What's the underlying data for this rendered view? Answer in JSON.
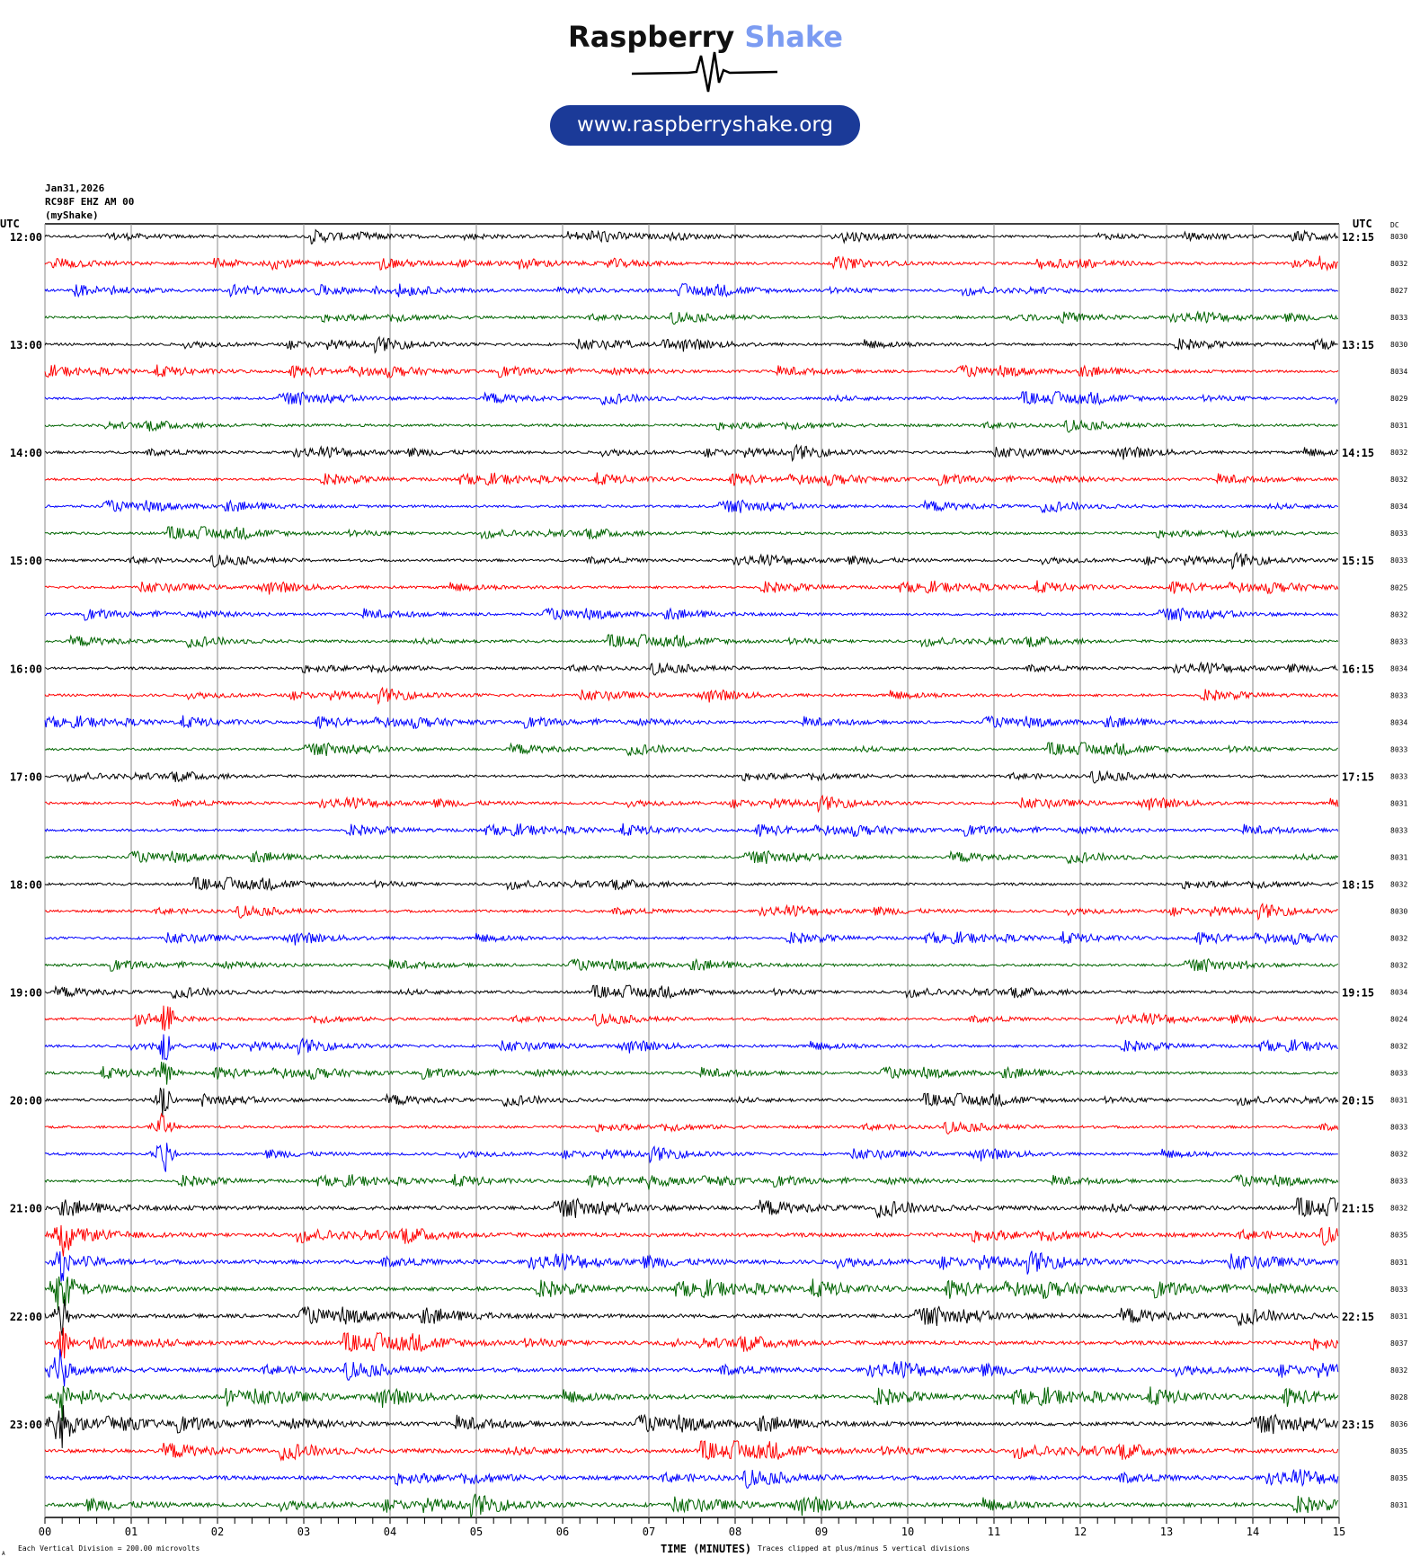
{
  "header": {
    "brand_part1": "Raspberry",
    "brand_part2": "Shake",
    "url": "www.raspberryshake.org",
    "date": "Jan31,2026",
    "station": "RC98F EHZ AM 00",
    "network": "(myShake)"
  },
  "chart_data": {
    "type": "line",
    "title": "",
    "xlabel": "TIME (MINUTES)",
    "left_axis_title": "UTC",
    "right_axis_title": "UTC",
    "dc_title": "DC",
    "xlim": [
      0,
      15
    ],
    "x_ticks": [
      "00",
      "01",
      "02",
      "03",
      "04",
      "05",
      "06",
      "07",
      "08",
      "09",
      "10",
      "11",
      "12",
      "13",
      "14",
      "15"
    ],
    "grid": true,
    "trace_colors": [
      "#000000",
      "#ff0000",
      "#0000ff",
      "#006400"
    ],
    "left_hour_labels": [
      "12:00",
      "13:00",
      "14:00",
      "15:00",
      "16:00",
      "17:00",
      "18:00",
      "19:00",
      "20:00",
      "21:00",
      "22:00",
      "23:00"
    ],
    "right_hour_labels": [
      "12:15",
      "13:15",
      "14:15",
      "15:15",
      "16:15",
      "17:15",
      "18:15",
      "19:15",
      "20:15",
      "21:15",
      "22:15",
      "23:15"
    ],
    "dc_values": [
      "8030",
      "8032",
      "8027",
      "8033",
      "8030",
      "8034",
      "8029",
      "8031",
      "8032",
      "8032",
      "8034",
      "8033",
      "8033",
      "8025",
      "8032",
      "8033",
      "8034",
      "8033",
      "8034",
      "8033",
      "8033",
      "8031",
      "8033",
      "8031",
      "8032",
      "8030",
      "8032",
      "8032",
      "8034",
      "8024",
      "8032",
      "8033",
      "8031",
      "8033",
      "8032",
      "8033",
      "8032",
      "8035",
      "8031",
      "8033",
      "8031",
      "8037",
      "8032",
      "8028",
      "8036",
      "8035",
      "8035",
      "8031"
    ],
    "events": [
      {
        "row": 2,
        "minute": 11.85,
        "amp": 0.4
      },
      {
        "row": 3,
        "minute": 11.2,
        "amp": 0.5
      },
      {
        "row": 4,
        "minute": 6.8,
        "amp": 0.4
      },
      {
        "row": 27,
        "minute": 13.9,
        "amp": 0.4
      },
      {
        "row": 27,
        "minute": 14.8,
        "amp": 0.5
      },
      {
        "row": 28,
        "minute": 14.8,
        "amp": 0.6
      },
      {
        "row": 29,
        "minute": 1.4,
        "amp": 5
      },
      {
        "row": 30,
        "minute": 1.38,
        "amp": 5
      },
      {
        "row": 31,
        "minute": 1.38,
        "amp": 5
      },
      {
        "row": 32,
        "minute": 1.38,
        "amp": 5
      },
      {
        "row": 33,
        "minute": 1.38,
        "amp": 5
      },
      {
        "row": 34,
        "minute": 1.38,
        "amp": 5
      },
      {
        "row": 35,
        "minute": 7.0,
        "amp": 0.6
      },
      {
        "row": 37,
        "minute": 0.2,
        "amp": 5
      },
      {
        "row": 38,
        "minute": 0.2,
        "amp": 5
      },
      {
        "row": 39,
        "minute": 0.2,
        "amp": 5
      },
      {
        "row": 40,
        "minute": 0.2,
        "amp": 5
      },
      {
        "row": 41,
        "minute": 0.2,
        "amp": 5
      },
      {
        "row": 41,
        "minute": 7.3,
        "amp": 1.2
      },
      {
        "row": 42,
        "minute": 0.2,
        "amp": 5
      },
      {
        "row": 43,
        "minute": 0.2,
        "amp": 5
      },
      {
        "row": 44,
        "minute": 0.2,
        "amp": 5
      }
    ]
  },
  "footer": {
    "scale_note": "Each Vertical Division =  200.00 microvolts",
    "clip_note": "Traces clipped at plus/minus 5 vertical divisions",
    "corner_mark": "A"
  }
}
